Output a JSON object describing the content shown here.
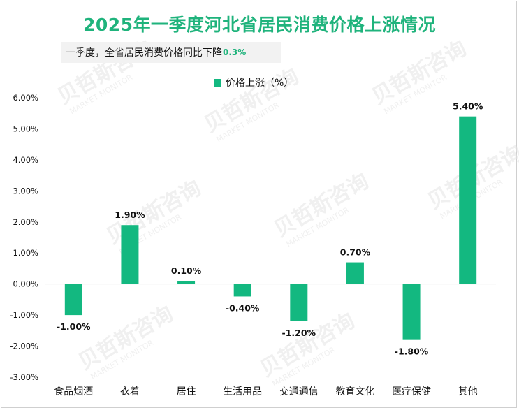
{
  "title": "2025年一季度河北省居民消费价格上涨情况",
  "note": {
    "text": "一季度，全省居民消费价格同比下降",
    "value": "0.3%"
  },
  "colors": {
    "title": "#1fb37c",
    "bar": "#13b880",
    "note_bg": "#f2f2f2"
  },
  "chart_data": {
    "type": "bar",
    "categories": [
      "食品烟酒",
      "衣着",
      "居住",
      "生活用品",
      "交通通信",
      "教育文化",
      "医疗保健",
      "其他"
    ],
    "series": [
      {
        "name": "价格上涨（%）",
        "values": [
          -1.0,
          1.9,
          0.1,
          -0.4,
          -1.2,
          0.7,
          -1.8,
          5.4
        ]
      }
    ],
    "data_labels": [
      "-1.00%",
      "1.90%",
      "0.10%",
      "-0.40%",
      "-1.20%",
      "0.70%",
      "-1.80%",
      "5.40%"
    ],
    "ylim": [
      -3.0,
      6.0
    ],
    "yticks": [
      6.0,
      5.0,
      4.0,
      3.0,
      2.0,
      1.0,
      0.0,
      -1.0,
      -2.0,
      -3.0
    ],
    "ytick_labels": [
      "6.00%",
      "5.00%",
      "4.00%",
      "3.00%",
      "2.00%",
      "1.00%",
      "0.00%",
      "-1.00%",
      "-2.00%",
      "-3.00%"
    ],
    "grid": false,
    "legend_position": "top-center"
  },
  "watermark": {
    "brand": "贝哲斯咨询",
    "sub": "MARKET MONITOR"
  }
}
